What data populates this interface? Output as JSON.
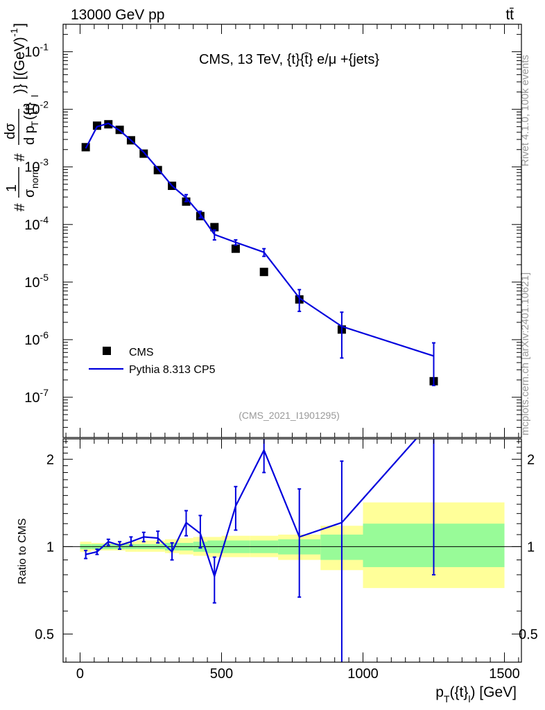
{
  "header": {
    "process_label": "13000 GeV pp",
    "channel_label": "tt̄"
  },
  "side_labels": {
    "rivet": "Rivet 4.1.0,  100k events",
    "source": "mcplots.cern.ch [arXiv:2401.10621]"
  },
  "colors": {
    "mc_line": "#0000dd",
    "data_marker": "#000000",
    "band_inner": "#98fb98",
    "band_outer": "#ffff99",
    "frame": "#000000",
    "watermark": "#999999"
  },
  "chart_data": [
    {
      "type": "scatter",
      "panel": "main",
      "title": "CMS, 13 TeV, {t}{t̄} e/μ +{jets}",
      "analysis_id": "(CMS_2021_I1901295)",
      "ylabel": "#1/σ_norm #dσ/dp_T({t}_l) [(GeV)^-1]",
      "ylabel_parts": {
        "one": "1",
        "sigma": "σ",
        "norm": "norm",
        "dsigma": "dσ",
        "dpt": "d p",
        "pt_sub": "T",
        "inner": "({t}",
        "l_sub": "l",
        "unit": ")} [(GeV)",
        "unit_sup": "-1",
        "unit_end": "]",
        "hash": "#"
      },
      "yscale": "log",
      "ylim": [
        2e-08,
        0.3
      ],
      "xlim": [
        -60,
        1560
      ],
      "y_tick_labels": [
        {
          "base": "10",
          "exp": "-1",
          "value": 0.1
        },
        {
          "base": "10",
          "exp": "-2",
          "value": 0.01
        },
        {
          "base": "10",
          "exp": "-3",
          "value": 0.001
        },
        {
          "base": "10",
          "exp": "-4",
          "value": 0.0001
        },
        {
          "base": "10",
          "exp": "-5",
          "value": 1e-05
        },
        {
          "base": "10",
          "exp": "-6",
          "value": 1e-06
        },
        {
          "base": "10",
          "exp": "-7",
          "value": 1e-07
        }
      ],
      "legend": [
        {
          "label": "CMS",
          "marker": "square"
        },
        {
          "label": "Pythia 8.313 CP5",
          "marker": "line"
        }
      ],
      "legend_position": "bottom-left",
      "series": [
        {
          "name": "CMS",
          "style": "markers",
          "x": [
            20,
            60,
            100,
            140,
            180,
            225,
            275,
            325,
            375,
            425,
            475,
            550,
            650,
            775,
            925,
            1250
          ],
          "y": [
            0.0022,
            0.0052,
            0.0055,
            0.0044,
            0.0029,
            0.0017,
            0.00088,
            0.00047,
            0.00025,
            0.00014,
            9e-05,
            3.8e-05,
            1.5e-05,
            5e-06,
            1.5e-06,
            1.9e-07
          ]
        },
        {
          "name": "Pythia 8.313 CP5",
          "style": "line",
          "x": [
            20,
            60,
            100,
            140,
            180,
            225,
            275,
            325,
            375,
            425,
            475,
            550,
            650,
            775,
            925,
            1250
          ],
          "y": [
            0.0021,
            0.005,
            0.0057,
            0.0043,
            0.0029,
            0.0018,
            0.00093,
            0.00047,
            0.00029,
            0.00015,
            6.7e-05,
            4.9e-05,
            3.3e-05,
            5.3e-06,
            1.7e-06,
            5.2e-07
          ],
          "y_err_low": [
            0.0021,
            0.005,
            0.0057,
            0.0043,
            0.0029,
            0.0018,
            0.00093,
            0.00047,
            0.00025,
            0.00013,
            5.4e-05,
            4.4e-05,
            2.8e-05,
            3.1e-06,
            4.8e-07,
            1.6e-07
          ],
          "y_err_high": [
            0.0021,
            0.005,
            0.0057,
            0.0043,
            0.0029,
            0.0018,
            0.00093,
            0.00047,
            0.00033,
            0.00017,
            8e-05,
            5.4e-05,
            3.8e-05,
            7.4e-06,
            3e-06,
            8.8e-07
          ]
        }
      ]
    },
    {
      "type": "line",
      "panel": "ratio",
      "ylabel": "Ratio to CMS",
      "xlabel": "p_T({t}_l) [GeV]",
      "xlabel_parts": {
        "p": "p",
        "sub_T": "T",
        "mid": "({t}",
        "sub_l": "l",
        "end": ") [GeV]"
      },
      "xlim": [
        -60,
        1560
      ],
      "ylim": [
        0.4,
        2.35
      ],
      "x_ticks": [
        0,
        500,
        1000,
        1500
      ],
      "x_tick_labels": [
        "0",
        "500",
        "1000",
        "1500"
      ],
      "y_tick_labels": [
        {
          "label": "2",
          "value": 2
        },
        {
          "label": "1",
          "value": 1
        },
        {
          "label": "0.5",
          "value": 0.5
        }
      ],
      "reference_line": 1,
      "uncertainty_bands": {
        "bin_edges": [
          0,
          40,
          80,
          120,
          160,
          200,
          250,
          300,
          350,
          400,
          450,
          500,
          600,
          700,
          850,
          1000,
          1500
        ],
        "inner_low": [
          0.98,
          0.98,
          0.98,
          0.98,
          0.98,
          0.98,
          0.98,
          0.97,
          0.97,
          0.96,
          0.95,
          0.95,
          0.95,
          0.94,
          0.9,
          0.85
        ],
        "inner_high": [
          1.02,
          1.02,
          1.02,
          1.02,
          1.02,
          1.02,
          1.02,
          1.03,
          1.03,
          1.04,
          1.05,
          1.05,
          1.05,
          1.06,
          1.1,
          1.2
        ],
        "outer_low": [
          0.96,
          0.97,
          0.97,
          0.97,
          0.96,
          0.96,
          0.96,
          0.95,
          0.94,
          0.93,
          0.92,
          0.92,
          0.92,
          0.9,
          0.83,
          0.72
        ],
        "outer_high": [
          1.04,
          1.03,
          1.03,
          1.03,
          1.04,
          1.05,
          1.05,
          1.06,
          1.07,
          1.08,
          1.08,
          1.09,
          1.09,
          1.1,
          1.18,
          1.42
        ]
      },
      "series": [
        {
          "name": "Pythia 8.313 CP5",
          "x": [
            20,
            60,
            100,
            140,
            180,
            225,
            275,
            325,
            375,
            425,
            475,
            550,
            650,
            775,
            925,
            1250
          ],
          "y": [
            0.94,
            0.96,
            1.04,
            1.01,
            1.04,
            1.08,
            1.07,
            0.96,
            1.21,
            1.11,
            0.79,
            1.38,
            2.15,
            1.08,
            1.21,
            2.75
          ],
          "y_err_low": [
            0.91,
            0.94,
            1.01,
            0.98,
            1.01,
            1.04,
            1.03,
            0.9,
            1.09,
            0.99,
            0.64,
            1.14,
            1.8,
            0.67,
            0.3,
            0.8
          ],
          "y_err_high": [
            0.97,
            0.98,
            1.06,
            1.04,
            1.08,
            1.12,
            1.13,
            1.03,
            1.33,
            1.28,
            0.92,
            1.61,
            2.5,
            1.58,
            1.97,
            4.5
          ]
        }
      ]
    }
  ]
}
